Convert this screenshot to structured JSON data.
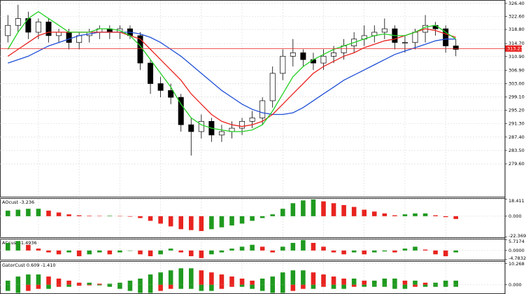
{
  "chart_data": [
    {
      "type": "candlestick",
      "open": [
        317,
        320,
        322,
        318,
        321,
        317,
        318,
        315,
        317,
        318,
        319,
        318,
        319,
        317,
        309,
        303,
        301,
        299,
        291,
        289,
        292,
        288,
        289,
        290,
        292,
        293,
        298,
        306,
        311,
        312,
        310,
        309,
        311,
        312,
        314,
        316,
        317,
        318,
        319,
        315,
        315,
        318,
        320,
        319,
        314
      ],
      "high": [
        323,
        326,
        324,
        322,
        322,
        319,
        319,
        318,
        319,
        320,
        320,
        320,
        320,
        318,
        310,
        305,
        303,
        300,
        293,
        294,
        293,
        291,
        292,
        293,
        295,
        299,
        308,
        313,
        316,
        313,
        312,
        313,
        314,
        316,
        318,
        320,
        320,
        322,
        320,
        317,
        319,
        323,
        321,
        320,
        316
      ],
      "low": [
        315,
        318,
        316,
        316,
        315,
        315,
        313,
        313,
        315,
        316,
        316,
        316,
        316,
        307,
        300,
        299,
        297,
        289,
        282,
        287,
        286,
        286,
        287,
        288,
        290,
        291,
        296,
        304,
        308,
        308,
        307,
        307,
        309,
        310,
        312,
        314,
        315,
        316,
        313,
        312,
        313,
        315,
        317,
        312,
        311
      ],
      "close": [
        320,
        322,
        318,
        321,
        317,
        318,
        315,
        317,
        318,
        319,
        318,
        319,
        317,
        309,
        303,
        301,
        299,
        291,
        289,
        292,
        288,
        289,
        290,
        292,
        293,
        298,
        306,
        311,
        312,
        310,
        309,
        311,
        312,
        314,
        316,
        317,
        318,
        319,
        315,
        315,
        318,
        320,
        319,
        314,
        313
      ],
      "up_color": "#ffffff",
      "down_color": "#000000",
      "wick_color": "#000000",
      "series": [
        {
          "color": "#1f4fd6",
          "values": [
            309,
            310,
            311,
            312.5,
            314,
            315,
            316,
            317,
            317.5,
            318,
            318,
            318,
            318,
            317.5,
            316.5,
            315,
            313,
            311,
            308.5,
            306,
            303.5,
            301,
            299,
            297,
            295.5,
            294.5,
            294,
            294,
            294.5,
            296,
            298,
            300,
            302,
            304,
            305.5,
            307,
            308.5,
            310,
            311.5,
            312.5,
            313.5,
            314.5,
            315.5,
            316,
            316
          ]
        },
        {
          "color": "#e8231f",
          "values": [
            311,
            313,
            315,
            317,
            318,
            318,
            318,
            318,
            318,
            318,
            318,
            318,
            317,
            316,
            313,
            310,
            307,
            304,
            300,
            297,
            294,
            292,
            291,
            290.5,
            291,
            292,
            294,
            297,
            300,
            303,
            306,
            308,
            309.5,
            311,
            312,
            313.5,
            314.5,
            315.5,
            316,
            317,
            318,
            319,
            318.5,
            317.5,
            316.5
          ]
        },
        {
          "color": "#22d022",
          "values": [
            313,
            318,
            322,
            324,
            322,
            320,
            318,
            318,
            318,
            319,
            319,
            318.5,
            317,
            314,
            310,
            306,
            302,
            297,
            293,
            291,
            290,
            289.5,
            289,
            289,
            289.5,
            291,
            295,
            300,
            305,
            308,
            310,
            311.5,
            313,
            314,
            315,
            316,
            317,
            317.5,
            317,
            317,
            318,
            319.5,
            320,
            318,
            316
          ]
        }
      ],
      "current_price": 313.23,
      "current_price_color": "#e8231f",
      "ylim": [
        269.8,
        327.4
      ],
      "yticks": [
        {
          "value": 326.4,
          "label": "326.40"
        },
        {
          "value": 322.6,
          "label": "322.60"
        },
        {
          "value": 318.8,
          "label": "318.80"
        },
        {
          "value": 314.7,
          "label": "314.70"
        },
        {
          "value": 310.9,
          "label": "310.90"
        },
        {
          "value": 306.9,
          "label": "306.90"
        },
        {
          "value": 303,
          "label": "303.00"
        },
        {
          "value": 299.1,
          "label": "299.10"
        },
        {
          "value": 295.2,
          "label": "295.20"
        },
        {
          "value": 291.3,
          "label": "291.30"
        },
        {
          "value": 287.4,
          "label": "287.40"
        },
        {
          "value": 283.5,
          "label": "283.50"
        },
        {
          "value": 279.6,
          "label": "279.60"
        }
      ],
      "grid": true
    },
    {
      "type": "histogram",
      "title": "AOcust -3.236",
      "up_color": "#1f9a1f",
      "down_color": "#e8231f",
      "series": [
        {
          "values": [
            6,
            7,
            8,
            8,
            6,
            4,
            2,
            1,
            0.5,
            0.3,
            0.5,
            0.2,
            -0.5,
            -2,
            -5,
            -8,
            -11,
            -14,
            -15,
            -16,
            -14,
            -12,
            -10,
            -8,
            -5,
            -2,
            2,
            8,
            14,
            17,
            18,
            16,
            14,
            12,
            10,
            7,
            5,
            3,
            1,
            2,
            3,
            3,
            1,
            -1,
            -3
          ]
        }
      ],
      "ylim": [
        -23.5,
        19.5
      ],
      "yticks": [
        18.411,
        {
          "value": 0,
          "label": "0.000"
        },
        -22.369
      ],
      "grid": true
    },
    {
      "type": "histogram",
      "title": "ACcust -1.4936",
      "up_color": "#1f9a1f",
      "down_color": "#e8231f",
      "series": [
        {
          "values": [
            4,
            5,
            3,
            1,
            -1,
            -2,
            -1,
            -3,
            -2,
            -1,
            -2,
            -1,
            0,
            -2,
            -3,
            -2,
            1,
            -1,
            -3,
            -4,
            -2,
            -1,
            1,
            2,
            3,
            2,
            -1,
            2,
            4,
            5.5,
            4,
            2,
            -1,
            -2,
            -1,
            -2,
            -1,
            -0.5,
            -1,
            1,
            2,
            0.5,
            -2,
            -3,
            -1
          ]
        }
      ],
      "ylim": [
        -5.2,
        6.2
      ],
      "yticks": [
        5.7174,
        {
          "value": 0,
          "label": "0.0000"
        },
        -4.7832
      ],
      "grid": true
    },
    {
      "type": "histogram",
      "title": "GatorCust 0.609 -1.410",
      "up_color": "#1f9a1f",
      "down_color": "#e8231f",
      "series": [
        {
          "values": [
            2,
            4,
            5,
            5,
            4,
            3,
            2,
            1,
            1,
            0.5,
            0.5,
            1,
            2,
            3,
            5,
            6,
            7,
            8,
            8,
            7,
            6,
            5,
            4,
            3,
            2,
            3,
            4,
            6,
            7,
            7,
            6,
            5,
            4,
            3,
            3,
            2,
            2,
            3,
            3,
            2,
            2,
            1,
            1,
            2,
            2
          ]
        },
        {
          "values": [
            -3,
            -4,
            -3,
            -2,
            -2,
            -1,
            -1,
            -0.5,
            -0.3,
            -0.3,
            -1,
            -2,
            -3,
            -4,
            -4,
            -3,
            -2,
            -2,
            -2,
            -3,
            -3,
            -2,
            -1,
            -1,
            -2,
            -3,
            -4,
            -4,
            -3,
            -2,
            -2,
            -1,
            -2,
            -2,
            -1,
            -1,
            -1,
            -1,
            -2,
            -2,
            -1,
            -1,
            -1,
            -1,
            -1
          ]
        }
      ],
      "ylim": [
        -4.5,
        11.5
      ],
      "yticks": [
        10.268,
        {
          "value": 0,
          "label": "0.000"
        }
      ],
      "grid": true
    }
  ]
}
